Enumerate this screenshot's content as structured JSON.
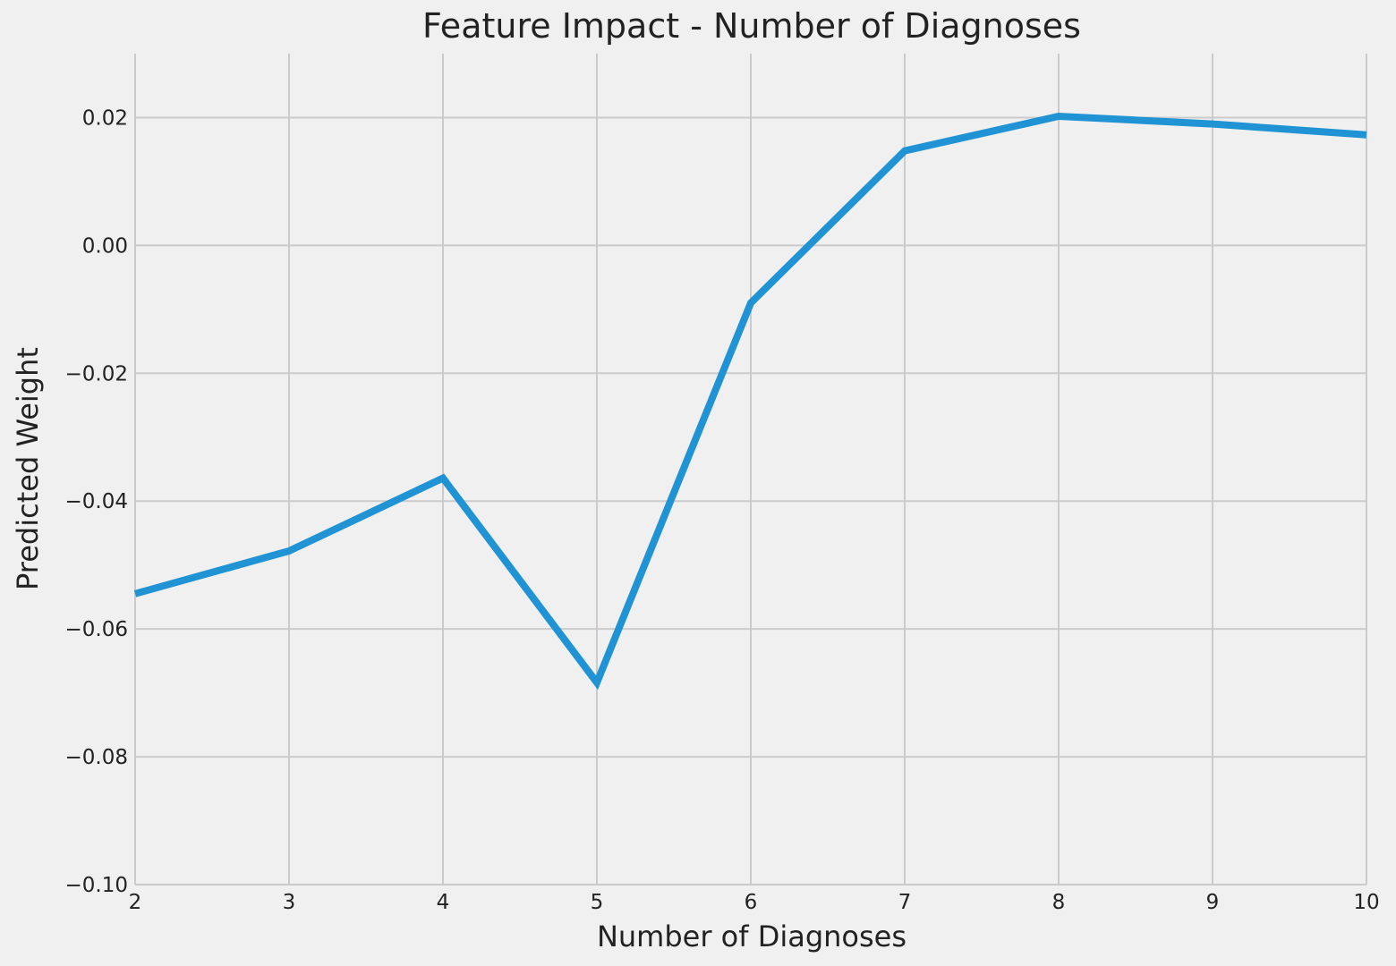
{
  "chart_data": {
    "type": "line",
    "title": "Feature Impact - Number of Diagnoses",
    "xlabel": "Number of Diagnoses",
    "ylabel": "Predicted Weight",
    "xlim": [
      2,
      10
    ],
    "ylim": [
      -0.1,
      0.03
    ],
    "x_ticks": [
      2,
      3,
      4,
      5,
      6,
      7,
      8,
      9,
      10
    ],
    "x_tick_labels": [
      "2",
      "3",
      "4",
      "5",
      "6",
      "7",
      "8",
      "9",
      "10"
    ],
    "y_ticks": [
      -0.1,
      -0.08,
      -0.06,
      -0.04,
      -0.02,
      0.0,
      0.02
    ],
    "y_tick_labels": [
      "−0.10",
      "−0.08",
      "−0.06",
      "−0.04",
      "−0.02",
      "0.00",
      "0.02"
    ],
    "grid": true,
    "series": [
      {
        "color": "#1f93d4",
        "x": [
          2,
          3,
          4,
          5,
          6,
          7,
          8,
          9,
          10
        ],
        "y": [
          -0.0545,
          -0.0478,
          -0.0364,
          -0.0684,
          -0.009,
          0.0148,
          0.0202,
          0.019,
          0.0173
        ]
      }
    ]
  }
}
